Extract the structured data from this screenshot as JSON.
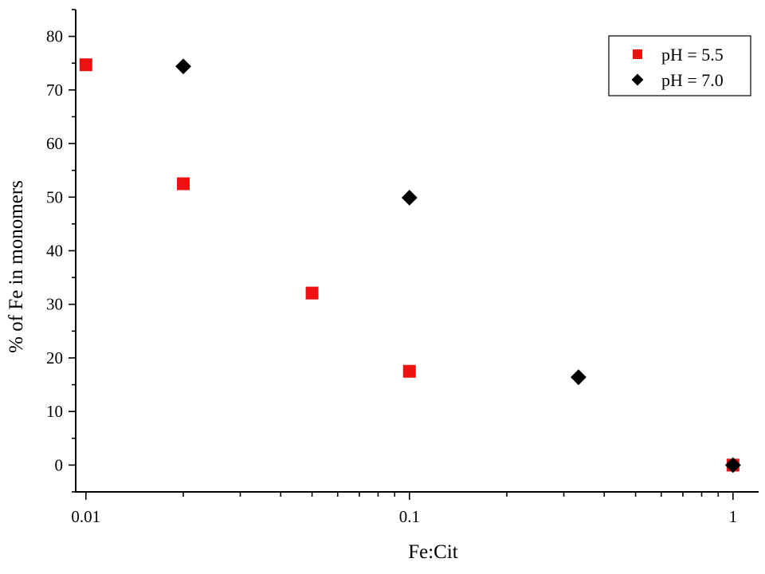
{
  "chart_data": {
    "type": "scatter",
    "title": "",
    "xlabel": "Fe:Cit",
    "ylabel": "% of Fe in monomers",
    "xscale": "log",
    "xlim": [
      0.0093,
      1.2
    ],
    "ylim": [
      -5,
      85
    ],
    "grid": false,
    "legend_position": "top-right",
    "xticks": [
      {
        "value": 0.01,
        "label": "0.01"
      },
      {
        "value": 0.1,
        "label": "0.1"
      },
      {
        "value": 1,
        "label": "1"
      }
    ],
    "yticks": [
      {
        "value": 0,
        "label": "0"
      },
      {
        "value": 10,
        "label": "10"
      },
      {
        "value": 20,
        "label": "20"
      },
      {
        "value": 30,
        "label": "30"
      },
      {
        "value": 40,
        "label": "40"
      },
      {
        "value": 50,
        "label": "50"
      },
      {
        "value": 60,
        "label": "60"
      },
      {
        "value": 70,
        "label": "70"
      },
      {
        "value": 80,
        "label": "80"
      }
    ],
    "series": [
      {
        "name": "pH = 5.5",
        "marker": "square",
        "color": "#ee1111",
        "points": [
          {
            "x": 0.01,
            "y": 74.7
          },
          {
            "x": 0.02,
            "y": 52.5
          },
          {
            "x": 0.05,
            "y": 32.1
          },
          {
            "x": 0.1,
            "y": 17.5
          },
          {
            "x": 1,
            "y": 0
          }
        ]
      },
      {
        "name": "pH = 7.0",
        "marker": "diamond",
        "color": "#000000",
        "points": [
          {
            "x": 0.02,
            "y": 74.4
          },
          {
            "x": 0.1,
            "y": 49.9
          },
          {
            "x": 0.333,
            "y": 16.4
          },
          {
            "x": 1,
            "y": 0
          }
        ]
      }
    ]
  }
}
